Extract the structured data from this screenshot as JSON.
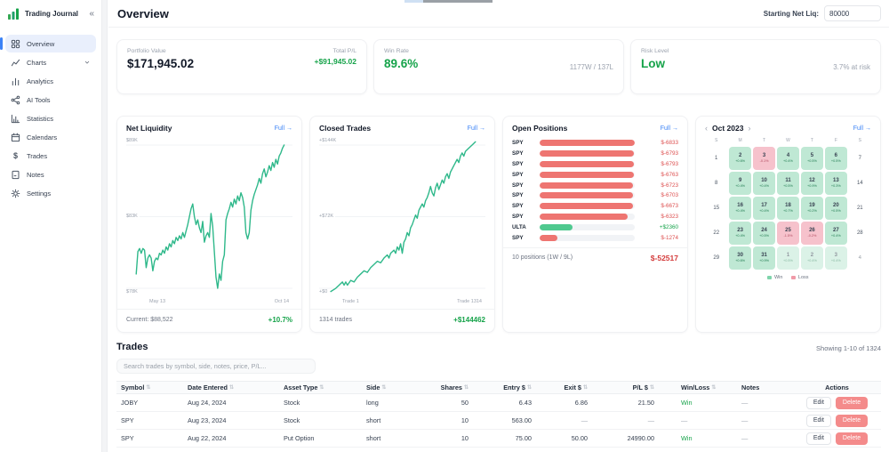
{
  "app": {
    "brand": "Trading Journal",
    "collapse_icon": "«",
    "colors": {
      "accent_blue": "#3b82f6",
      "green_text": "#16a34a",
      "chart_green": "#2eb88a",
      "red_text": "#dd4f4f",
      "bar_red": "#ee7571",
      "bar_green": "#4fc98f",
      "calendar_win_bg": "#bfe8d4",
      "calendar_loss_bg": "#f6c2cc",
      "delete_button_bg": "#f48b8b"
    }
  },
  "sidebar": {
    "items": [
      {
        "label": "Overview",
        "icon": "grid-icon",
        "active": true,
        "chevron": false
      },
      {
        "label": "Charts",
        "icon": "line-chart-icon",
        "active": false,
        "chevron": true
      },
      {
        "label": "Analytics",
        "icon": "bar-chart-icon",
        "active": false,
        "chevron": false
      },
      {
        "label": "AI Tools",
        "icon": "network-icon",
        "active": false,
        "chevron": false
      },
      {
        "label": "Statistics",
        "icon": "histogram-icon",
        "active": false,
        "chevron": false
      },
      {
        "label": "Calendars",
        "icon": "calendar-icon",
        "active": false,
        "chevron": false
      },
      {
        "label": "Trades",
        "icon": "dollar-icon",
        "active": false,
        "chevron": false
      },
      {
        "label": "Notes",
        "icon": "note-icon",
        "active": false,
        "chevron": false
      },
      {
        "label": "Settings",
        "icon": "gear-icon",
        "active": false,
        "chevron": false
      }
    ]
  },
  "header": {
    "title": "Overview",
    "starting_net_liq_label": "Starting Net Liq:",
    "starting_net_liq_value": "80000"
  },
  "stats": {
    "portfolio": {
      "label": "Portfolio Value",
      "value": "$171,945.02",
      "secondary_label": "Total P/L",
      "secondary_value": "+$91,945.02"
    },
    "win_rate": {
      "label": "Win Rate",
      "value": "89.6%",
      "secondary_value": "1177W / 137L"
    },
    "risk": {
      "label": "Risk Level",
      "value": "Low",
      "secondary_value": "3.7% at risk"
    }
  },
  "panels": {
    "net_liquidity": {
      "title": "Net Liquidity",
      "full_link": "Full →",
      "y_labels": [
        "$89K",
        "$83K",
        "$78K"
      ],
      "x_labels": [
        "May 13",
        "Oct 14"
      ],
      "footer_left": "Current: $88,522",
      "footer_right": "+10.7%"
    },
    "closed_trades": {
      "title": "Closed Trades",
      "full_link": "Full →",
      "y_labels": [
        "+$144K",
        "+$72K",
        "+$0"
      ],
      "x_labels": [
        "Trade 1",
        "Trade 1314"
      ],
      "footer_left": "1314 trades",
      "footer_right": "+$144462"
    },
    "open_positions": {
      "title": "Open Positions",
      "full_link": "Full →",
      "rows": [
        {
          "symbol": "SPY",
          "value": "$-6833",
          "pct": 100,
          "dir": "loss"
        },
        {
          "symbol": "SPY",
          "value": "$-6793",
          "pct": 99.4,
          "dir": "loss"
        },
        {
          "symbol": "SPY",
          "value": "$-6793",
          "pct": 99.4,
          "dir": "loss"
        },
        {
          "symbol": "SPY",
          "value": "$-6763",
          "pct": 99,
          "dir": "loss"
        },
        {
          "symbol": "SPY",
          "value": "$-6723",
          "pct": 98.4,
          "dir": "loss"
        },
        {
          "symbol": "SPY",
          "value": "$-6703",
          "pct": 98.1,
          "dir": "loss"
        },
        {
          "symbol": "SPY",
          "value": "$-6673",
          "pct": 97.7,
          "dir": "loss"
        },
        {
          "symbol": "SPY",
          "value": "$-6323",
          "pct": 92.5,
          "dir": "loss"
        },
        {
          "symbol": "ULTA",
          "value": "+$2360",
          "pct": 34.5,
          "dir": "win"
        },
        {
          "symbol": "SPY",
          "value": "$-1274",
          "pct": 18.6,
          "dir": "loss"
        }
      ],
      "footer_left": "10 positions (1W / 9L)",
      "footer_right": "$-52517"
    },
    "calendar": {
      "title": "Oct 2023",
      "prev_icon": "‹",
      "next_icon": "›",
      "full_link": "Full →",
      "day_headers": [
        "S",
        "M",
        "T",
        "W",
        "T",
        "F",
        "S"
      ],
      "weeks": [
        [
          {
            "d": 1,
            "t": "plain"
          },
          {
            "d": 2,
            "t": "win",
            "p": "+0.6%"
          },
          {
            "d": 3,
            "t": "loss",
            "p": "-0.1%"
          },
          {
            "d": 4,
            "t": "win",
            "p": "+0.4%"
          },
          {
            "d": 5,
            "t": "win",
            "p": "+0.5%"
          },
          {
            "d": 6,
            "t": "win",
            "p": "+0.5%"
          },
          {
            "d": 7,
            "t": "plain"
          }
        ],
        [
          {
            "d": 8,
            "t": "plain"
          },
          {
            "d": 9,
            "t": "win",
            "p": "+0.4%"
          },
          {
            "d": 10,
            "t": "win",
            "p": "+0.4%"
          },
          {
            "d": 11,
            "t": "win",
            "p": "+0.5%"
          },
          {
            "d": 12,
            "t": "win",
            "p": "+0.9%"
          },
          {
            "d": 13,
            "t": "win",
            "p": "+0.3%"
          },
          {
            "d": 14,
            "t": "plain"
          }
        ],
        [
          {
            "d": 15,
            "t": "plain"
          },
          {
            "d": 16,
            "t": "win",
            "p": "+0.4%"
          },
          {
            "d": 17,
            "t": "win",
            "p": "+0.4%"
          },
          {
            "d": 18,
            "t": "win",
            "p": "+0.7%"
          },
          {
            "d": 19,
            "t": "win",
            "p": "+0.2%"
          },
          {
            "d": 20,
            "t": "win",
            "p": "+0.5%"
          },
          {
            "d": 21,
            "t": "plain"
          }
        ],
        [
          {
            "d": 22,
            "t": "plain"
          },
          {
            "d": 23,
            "t": "win",
            "p": "+0.4%"
          },
          {
            "d": 24,
            "t": "win",
            "p": "+0.5%"
          },
          {
            "d": 25,
            "t": "loss",
            "p": "-1.5%"
          },
          {
            "d": 26,
            "t": "loss",
            "p": "-0.2%"
          },
          {
            "d": 27,
            "t": "win",
            "p": "+0.4%"
          },
          {
            "d": 28,
            "t": "plain"
          }
        ],
        [
          {
            "d": 29,
            "t": "plain"
          },
          {
            "d": 30,
            "t": "win",
            "p": "+0.6%"
          },
          {
            "d": 31,
            "t": "win",
            "p": "+0.9%"
          },
          {
            "d": 1,
            "t": "win",
            "p": "+0.5%",
            "muted": true
          },
          {
            "d": 2,
            "t": "win",
            "p": "+0.4%",
            "muted": true
          },
          {
            "d": 3,
            "t": "win",
            "p": "+0.4%",
            "muted": true
          },
          {
            "d": 4,
            "t": "plain",
            "muted": true
          }
        ]
      ],
      "legend": [
        {
          "label": "Win",
          "type": "win"
        },
        {
          "label": "Loss",
          "type": "loss"
        }
      ]
    }
  },
  "chart_data": [
    {
      "type": "line",
      "title": "Net Liquidity",
      "color": "#2eb88a",
      "y_ticks": [
        "$89K",
        "$83K",
        "$78K"
      ],
      "x_ticks": [
        "May 13",
        "Oct 14"
      ],
      "current_value": "$88,522",
      "change_pct": "+10.7%",
      "points": [
        [
          6,
          86
        ],
        [
          7,
          72
        ],
        [
          8,
          70
        ],
        [
          9,
          73
        ],
        [
          10,
          70
        ],
        [
          11,
          71
        ],
        [
          12,
          82
        ],
        [
          13,
          76
        ],
        [
          14,
          74
        ],
        [
          15,
          76
        ],
        [
          16,
          84
        ],
        [
          17,
          78
        ],
        [
          18,
          76
        ],
        [
          19,
          77
        ],
        [
          20,
          73
        ],
        [
          21,
          74
        ],
        [
          22,
          71
        ],
        [
          23,
          73
        ],
        [
          24,
          69
        ],
        [
          25,
          71
        ],
        [
          26,
          67
        ],
        [
          27,
          69
        ],
        [
          28,
          65
        ],
        [
          29,
          67
        ],
        [
          30,
          63
        ],
        [
          31,
          65
        ],
        [
          32,
          62
        ],
        [
          33,
          64
        ],
        [
          34,
          60
        ],
        [
          35,
          63
        ],
        [
          36,
          59
        ],
        [
          37,
          55
        ],
        [
          38,
          50
        ],
        [
          39,
          45
        ],
        [
          40,
          42
        ],
        [
          41,
          50
        ],
        [
          42,
          55
        ],
        [
          43,
          52
        ],
        [
          44,
          57
        ],
        [
          45,
          60
        ],
        [
          46,
          53
        ],
        [
          47,
          66
        ],
        [
          48,
          62
        ],
        [
          49,
          60
        ],
        [
          50,
          63
        ],
        [
          51,
          48
        ],
        [
          52,
          56
        ],
        [
          53,
          72
        ],
        [
          54,
          88
        ],
        [
          55,
          95
        ],
        [
          56,
          86
        ],
        [
          57,
          90
        ],
        [
          58,
          78
        ],
        [
          59,
          74
        ],
        [
          60,
          52
        ],
        [
          61,
          48
        ],
        [
          62,
          45
        ],
        [
          63,
          41
        ],
        [
          64,
          44
        ],
        [
          65,
          39
        ],
        [
          66,
          42
        ],
        [
          67,
          37
        ],
        [
          68,
          40
        ],
        [
          69,
          35
        ],
        [
          70,
          38
        ],
        [
          71,
          44
        ],
        [
          72,
          60
        ],
        [
          73,
          64
        ],
        [
          74,
          60
        ],
        [
          75,
          46
        ],
        [
          76,
          40
        ],
        [
          77,
          36
        ],
        [
          78,
          33
        ],
        [
          79,
          30
        ],
        [
          80,
          26
        ],
        [
          81,
          29
        ],
        [
          82,
          23
        ],
        [
          83,
          20
        ],
        [
          84,
          25
        ],
        [
          85,
          22
        ],
        [
          86,
          18
        ],
        [
          87,
          21
        ],
        [
          88,
          16
        ],
        [
          89,
          19
        ],
        [
          90,
          14
        ],
        [
          91,
          17
        ],
        [
          92,
          12
        ],
        [
          93,
          10
        ],
        [
          94,
          7
        ],
        [
          95,
          5
        ]
      ]
    },
    {
      "type": "line",
      "title": "Closed Trades",
      "color": "#2eb88a",
      "y_ticks": [
        "+$144K",
        "+$72K",
        "+$0"
      ],
      "x_ticks": [
        "Trade 1",
        "Trade 1314"
      ],
      "total_trades": 1314,
      "total_pl": "+$144462",
      "points": [
        [
          7,
          97
        ],
        [
          10,
          95
        ],
        [
          12,
          93
        ],
        [
          14,
          91
        ],
        [
          15,
          93
        ],
        [
          16,
          91
        ],
        [
          17,
          93
        ],
        [
          19,
          90
        ],
        [
          21,
          91
        ],
        [
          23,
          88
        ],
        [
          25,
          86
        ],
        [
          27,
          84
        ],
        [
          29,
          85
        ],
        [
          31,
          82
        ],
        [
          33,
          80
        ],
        [
          35,
          78
        ],
        [
          37,
          79
        ],
        [
          39,
          76
        ],
        [
          41,
          74
        ],
        [
          42,
          76
        ],
        [
          43,
          73
        ],
        [
          45,
          71
        ],
        [
          46,
          73
        ],
        [
          47,
          69
        ],
        [
          48,
          71
        ],
        [
          49,
          67
        ],
        [
          50,
          73
        ],
        [
          51,
          66
        ],
        [
          52,
          64
        ],
        [
          53,
          60
        ],
        [
          54,
          62
        ],
        [
          55,
          57
        ],
        [
          56,
          55
        ],
        [
          57,
          52
        ],
        [
          58,
          49
        ],
        [
          59,
          51
        ],
        [
          60,
          46
        ],
        [
          61,
          44
        ],
        [
          62,
          42
        ],
        [
          63,
          44
        ],
        [
          64,
          40
        ],
        [
          65,
          38
        ],
        [
          66,
          35
        ],
        [
          67,
          31
        ],
        [
          68,
          35
        ],
        [
          69,
          37
        ],
        [
          70,
          32
        ],
        [
          71,
          29
        ],
        [
          72,
          33
        ],
        [
          73,
          30
        ],
        [
          74,
          27
        ],
        [
          75,
          29
        ],
        [
          76,
          25
        ],
        [
          77,
          23
        ],
        [
          78,
          26
        ],
        [
          79,
          22
        ],
        [
          80,
          20
        ],
        [
          81,
          18
        ],
        [
          82,
          16
        ],
        [
          83,
          14
        ],
        [
          84,
          16
        ],
        [
          85,
          12
        ],
        [
          86,
          10
        ],
        [
          87,
          12
        ],
        [
          88,
          9
        ],
        [
          90,
          7
        ],
        [
          92,
          5
        ],
        [
          94,
          3
        ]
      ]
    }
  ],
  "trades": {
    "heading": "Trades",
    "showing": "Showing 1-10 of 1324",
    "search_placeholder": "Search trades by symbol, side, notes, price, P/L...",
    "columns": [
      {
        "label": "Symbol",
        "sortable": true,
        "align": "left"
      },
      {
        "label": "Date Entered",
        "sortable": true,
        "align": "left"
      },
      {
        "label": "Asset Type",
        "sortable": true,
        "align": "left"
      },
      {
        "label": "Side",
        "sortable": true,
        "align": "left"
      },
      {
        "label": "Shares",
        "sortable": true,
        "align": "right"
      },
      {
        "label": "Entry $",
        "sortable": true,
        "align": "right"
      },
      {
        "label": "Exit $",
        "sortable": true,
        "align": "right"
      },
      {
        "label": "P/L $",
        "sortable": true,
        "align": "right"
      },
      {
        "label": "Win/Loss",
        "sortable": true,
        "align": "indent"
      },
      {
        "label": "Notes",
        "sortable": false,
        "align": "left"
      },
      {
        "label": "Actions",
        "sortable": false,
        "align": "center"
      }
    ],
    "rows": [
      {
        "symbol": "JOBY",
        "date_entered": "Aug 24, 2024",
        "asset_type": "Stock",
        "side": "long",
        "shares": "50",
        "entry": "6.43",
        "exit": "6.86",
        "pl": "21.50",
        "win_loss": "Win",
        "notes": "—"
      },
      {
        "symbol": "SPY",
        "date_entered": "Aug 23, 2024",
        "asset_type": "Stock",
        "side": "short",
        "shares": "10",
        "entry": "563.00",
        "exit": "—",
        "pl": "—",
        "win_loss": "—",
        "notes": "—"
      },
      {
        "symbol": "SPY",
        "date_entered": "Aug 22, 2024",
        "asset_type": "Put Option",
        "side": "short",
        "shares": "10",
        "entry": "75.00",
        "exit": "50.00",
        "pl": "24990.00",
        "win_loss": "Win",
        "notes": "—"
      }
    ],
    "edit_label": "Edit",
    "delete_label": "Delete"
  }
}
